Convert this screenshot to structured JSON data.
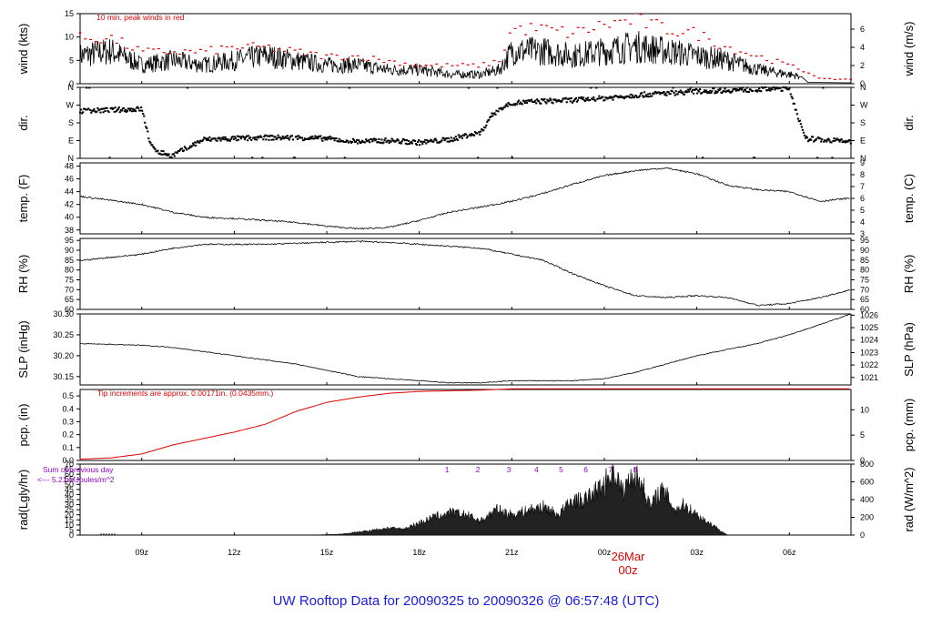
{
  "title": "UW Rooftop Data for 20090325  to  20090326 @ 06:57:48  (UTC)",
  "date_marker": {
    "day": "26Mar",
    "hour": "00z"
  },
  "colors": {
    "series": "#000000",
    "peak": "#e00000",
    "pcp": "#e00000",
    "annot": "#9900cc",
    "title": "#1a1ae6"
  },
  "chart_data": [
    {
      "type": "line",
      "panel": "wind",
      "ylabel_left": "wind (kts)",
      "ylabel_right": "wind (m/s)",
      "ylim": [
        0,
        15
      ],
      "yticks": [
        0,
        5,
        10,
        15
      ],
      "right_ylim": [
        0,
        7.7
      ],
      "right_yticks": [
        0,
        2,
        4,
        6
      ],
      "annotation": "10 min. peak winds in red",
      "x_hours": [
        6.0,
        7.0,
        8.0,
        9.0,
        10.0,
        11.0,
        12.0,
        13.0,
        14.0,
        15.0,
        16.0,
        17.0,
        18.0,
        19.0,
        19.6,
        20.0,
        21.0,
        22.0,
        23.0,
        24.0,
        25.0,
        26.0,
        27.0,
        28.0,
        29.0,
        29.4,
        29.8,
        30.0,
        30.5,
        31.0
      ],
      "series": [
        {
          "name": "wind",
          "values": [
            6,
            7,
            4,
            5,
            4,
            5,
            6,
            5,
            4,
            4,
            3,
            3,
            2,
            2,
            3,
            7,
            7,
            6,
            7,
            8,
            7,
            6,
            5,
            3,
            2,
            1.5,
            0.5,
            0.2,
            0.3,
            0.2
          ]
        },
        {
          "name": "10 min. peak winds",
          "values": [
            10,
            10,
            7,
            7,
            7,
            8,
            8,
            7,
            6,
            6,
            5,
            4,
            4,
            4,
            5,
            12,
            12,
            11,
            13,
            14,
            12,
            11,
            8,
            6,
            4,
            3,
            2,
            1,
            1,
            1
          ]
        }
      ]
    },
    {
      "type": "scatter",
      "panel": "dir",
      "ylabel_left": "dir.",
      "ylabel_right": "dir.",
      "ylim": [
        0,
        360
      ],
      "ytick_labels": [
        "N",
        "E",
        "S",
        "W",
        "N"
      ],
      "x_hours": [
        6.0,
        7.0,
        8.0,
        8.3,
        8.6,
        9.0,
        10.0,
        11.0,
        12.0,
        13.0,
        14.0,
        15.0,
        16.0,
        17.0,
        18.0,
        18.5,
        19.0,
        19.3,
        19.6,
        20.0,
        21.0,
        22.0,
        23.0,
        24.0,
        25.0,
        26.0,
        27.0,
        28.0,
        29.0,
        29.5,
        30.0,
        31.0
      ],
      "values": [
        240,
        245,
        250,
        60,
        30,
        15,
        95,
        100,
        105,
        105,
        100,
        85,
        90,
        80,
        95,
        115,
        130,
        210,
        250,
        280,
        290,
        295,
        305,
        320,
        330,
        340,
        345,
        350,
        355,
        100,
        95,
        85
      ]
    },
    {
      "type": "line",
      "panel": "temp",
      "ylabel_left": "temp. (F)",
      "ylabel_right": "temp. (C)",
      "ylim": [
        37.4,
        48.5
      ],
      "yticks": [
        38,
        40,
        42,
        44,
        46,
        48
      ],
      "right_ylim": [
        3,
        9
      ],
      "right_yticks": [
        3,
        4,
        5,
        6,
        7,
        8,
        9
      ],
      "x_hours": [
        4.0,
        5.5,
        8.0,
        9.0,
        10.0,
        11.0,
        12.0,
        13.0,
        14.0,
        15.0,
        16.0,
        17.0,
        18.0,
        19.0,
        20.0,
        21.0,
        22.0,
        23.0,
        24.0,
        25.0,
        26.0,
        27.0,
        28.0,
        29.0,
        30.0,
        31.0
      ],
      "values": [
        44.2,
        43.6,
        42.0,
        40.8,
        40.0,
        39.8,
        39.5,
        39.2,
        38.6,
        38.2,
        38.4,
        39.5,
        40.8,
        41.6,
        42.5,
        43.7,
        45.2,
        46.5,
        47.3,
        47.7,
        46.8,
        45.0,
        44.3,
        44.0,
        42.5,
        43.0
      ]
    },
    {
      "type": "line",
      "panel": "rh",
      "ylabel_left": "RH (%)",
      "ylabel_right": "RH (%)",
      "ylim": [
        60,
        96
      ],
      "yticks": [
        60,
        65,
        70,
        75,
        80,
        85,
        90,
        95
      ],
      "x_hours": [
        4.0,
        5.5,
        8.0,
        9.0,
        10.0,
        11.0,
        12.0,
        13.0,
        14.0,
        15.0,
        16.0,
        17.0,
        18.0,
        19.0,
        20.0,
        21.0,
        22.0,
        23.0,
        24.0,
        25.0,
        26.0,
        27.0,
        28.0,
        29.0,
        30.0,
        31.0
      ],
      "values": [
        81,
        84,
        88,
        91,
        93,
        93,
        93,
        93.5,
        94,
        94.5,
        94,
        93,
        92,
        91,
        88,
        85,
        78,
        72,
        67,
        66,
        67,
        66,
        62,
        63,
        66,
        70
      ]
    },
    {
      "type": "line",
      "panel": "slp",
      "ylabel_left": "SLP (inHg)",
      "ylabel_right": "SLP (hPa)",
      "ylim": [
        30.13,
        30.3
      ],
      "yticks": [
        30.15,
        30.2,
        30.25,
        30.3
      ],
      "right_ylim": [
        1020.4,
        1026.1
      ],
      "right_yticks": [
        1021,
        1022,
        1023,
        1024,
        1025,
        1026
      ],
      "x_hours": [
        4.0,
        5.5,
        8.0,
        9.0,
        10.0,
        11.0,
        12.0,
        13.0,
        14.0,
        15.0,
        16.0,
        17.0,
        18.0,
        19.0,
        20.0,
        21.0,
        22.0,
        23.0,
        24.0,
        25.0,
        26.0,
        27.0,
        28.0,
        29.0,
        30.0,
        31.0
      ],
      "values": [
        30.23,
        30.23,
        30.225,
        30.22,
        30.21,
        30.2,
        30.19,
        30.18,
        30.165,
        30.15,
        30.145,
        30.14,
        30.135,
        30.135,
        30.14,
        30.14,
        30.14,
        30.145,
        30.16,
        30.18,
        30.2,
        30.215,
        30.23,
        30.25,
        30.275,
        30.3
      ]
    },
    {
      "type": "line",
      "panel": "pcp",
      "ylabel_left": "pcp. (in)",
      "ylabel_right": "pcp. (mm)",
      "ylim": [
        0,
        0.55
      ],
      "yticks": [
        0,
        0.1,
        0.2,
        0.3,
        0.4,
        0.5
      ],
      "right_ylim": [
        0,
        14
      ],
      "right_yticks": [
        0,
        5,
        10
      ],
      "annotation": "Tip increments are approx. 0.00171in. (0.0435mm.)",
      "x_hours": [
        4.0,
        5.5,
        7.0,
        8.0,
        9.0,
        10.0,
        11.0,
        12.0,
        13.0,
        14.0,
        15.0,
        16.0,
        17.0,
        18.0,
        19.0,
        19.5,
        20.0,
        31.0
      ],
      "values": [
        0,
        0.005,
        0.02,
        0.05,
        0.12,
        0.17,
        0.22,
        0.28,
        0.38,
        0.45,
        0.49,
        0.52,
        0.535,
        0.54,
        0.545,
        0.55,
        0.555,
        0.555
      ]
    },
    {
      "type": "area",
      "panel": "rad",
      "ylabel_left": "rad(Lgly/hr)",
      "ylabel_right": "rad (W/m^2)",
      "ylim": [
        0,
        70
      ],
      "yticks": [
        0,
        5,
        10,
        15,
        20,
        25,
        30,
        35,
        40,
        45,
        50,
        55,
        60,
        65,
        70
      ],
      "right_ylim": [
        0,
        800
      ],
      "right_yticks": [
        0,
        200,
        400,
        600,
        800
      ],
      "annotation": [
        "Sum of previous day",
        "<--- 5.21 MJoules/m^2"
      ],
      "hour_markers": [
        "1",
        "2",
        "3",
        "4",
        "5",
        "6",
        "7",
        "8"
      ],
      "x_hours": [
        13.5,
        14.5,
        15.0,
        15.5,
        16.0,
        16.5,
        17.0,
        17.5,
        18.0,
        18.5,
        19.0,
        19.5,
        20.0,
        20.5,
        21.0,
        21.5,
        22.0,
        22.3,
        22.6,
        23.0,
        23.3,
        23.6,
        23.9,
        24.2,
        24.5,
        24.8,
        25.0,
        25.3,
        25.6,
        26.0,
        26.5,
        27.0
      ],
      "values": [
        0,
        1,
        3,
        5,
        7,
        6,
        12,
        18,
        22,
        20,
        14,
        25,
        20,
        24,
        28,
        20,
        35,
        33,
        40,
        50,
        65,
        42,
        60,
        52,
        28,
        44,
        40,
        25,
        30,
        20,
        10,
        0
      ]
    }
  ],
  "x_axis": {
    "start_hour": 6.0,
    "end_hour": 31.0,
    "ticks": [
      {
        "hour": 8.0,
        "label": "09z"
      },
      {
        "hour": 11.0,
        "label": "12z"
      },
      {
        "hour": 14.0,
        "label": "15z"
      },
      {
        "hour": 17.0,
        "label": "18z"
      },
      {
        "hour": 20.0,
        "label": "21z"
      },
      {
        "hour": 23.0,
        "label": "00z"
      },
      {
        "hour": 26.0,
        "label": "03z"
      },
      {
        "hour": 29.0,
        "label": "06z"
      }
    ]
  }
}
